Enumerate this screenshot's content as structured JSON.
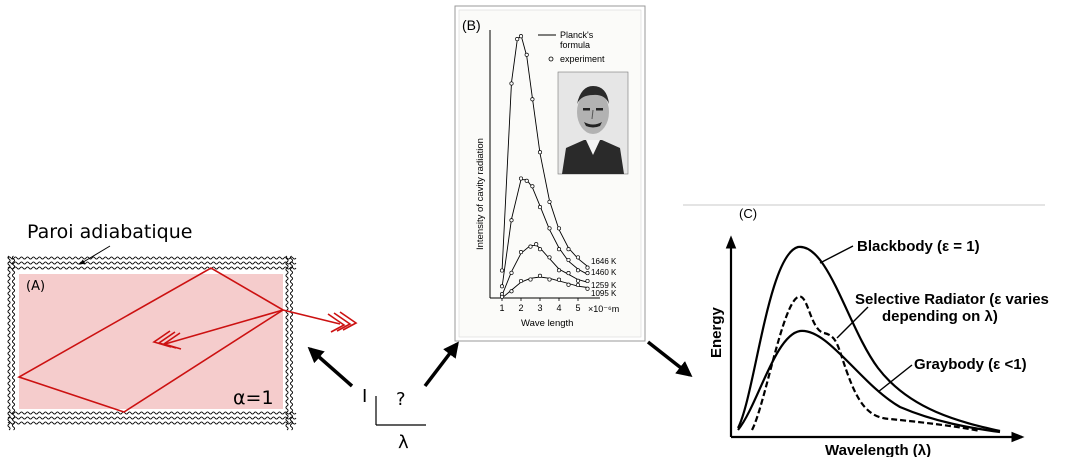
{
  "panel_a": {
    "wall_label": "Paroi adiabatique",
    "panel_label": "(A)",
    "alpha_label": "α=1",
    "cavity_fill": "#f5cccc",
    "ray_color": "#cc1111"
  },
  "axes_sketch": {
    "y_label": "I",
    "x_label": "λ",
    "question": "?"
  },
  "panel_b": {
    "panel_label": "(B)",
    "legend_line": "Planck's formula",
    "legend_line_1": "Planck's",
    "legend_line_2": "formula",
    "legend_dots": "experiment",
    "ylabel": "Intensity of cavity radiation",
    "xlabel": "Wave length",
    "x_unit": "×10⁻⁶m",
    "x_ticks": [
      "1",
      "2",
      "3",
      "4",
      "5"
    ],
    "curve_labels": [
      "1646 K",
      "1460 K",
      "1259 K",
      "1095 K"
    ],
    "portrait": "max-planck-portrait"
  },
  "panel_c": {
    "panel_label": "(C)",
    "ylabel": "Energy",
    "xlabel": "Wavelength (λ)",
    "blackbody_label": "Blackbody (ε = 1)",
    "selective_label_1": "Selective Radiator (ε varies",
    "selective_label_2": "depending on λ)",
    "graybody_label": "Graybody (ε <1)"
  },
  "chart_data": [
    {
      "type": "line",
      "title": "",
      "xlabel": "Wave length",
      "ylabel": "Intensity of cavity radiation",
      "x_unit": "×10⁻⁶m",
      "xlim": [
        0.5,
        6
      ],
      "series": [
        {
          "name": "1646 K",
          "x": [
            1.0,
            1.5,
            1.8,
            2.0,
            2.3,
            2.6,
            3.0,
            3.5,
            4.0,
            4.5,
            5.0,
            5.5
          ],
          "values": [
            10,
            82,
            98,
            100,
            92,
            76,
            55,
            37,
            26,
            19,
            15,
            12
          ]
        },
        {
          "name": "1460 K",
          "x": [
            1.0,
            1.5,
            2.0,
            2.3,
            2.6,
            3.0,
            3.5,
            4.0,
            4.5,
            5.0,
            5.5
          ],
          "values": [
            4,
            30,
            45,
            45,
            42,
            35,
            26,
            19,
            14,
            11,
            9
          ]
        },
        {
          "name": "1259 K",
          "x": [
            1.0,
            1.5,
            2.0,
            2.5,
            2.8,
            3.0,
            3.5,
            4.0,
            4.5,
            5.0,
            5.5
          ],
          "values": [
            1,
            10,
            17,
            20,
            20,
            19,
            15,
            11,
            9,
            7,
            6
          ]
        },
        {
          "name": "1095 K",
          "x": [
            1.0,
            1.5,
            2.0,
            2.5,
            3.0,
            3.5,
            4.0,
            4.5,
            5.0,
            5.5
          ],
          "values": [
            0,
            3,
            6,
            7.5,
            8,
            7.5,
            6.5,
            5.5,
            4.5,
            4
          ]
        }
      ]
    }
  ]
}
